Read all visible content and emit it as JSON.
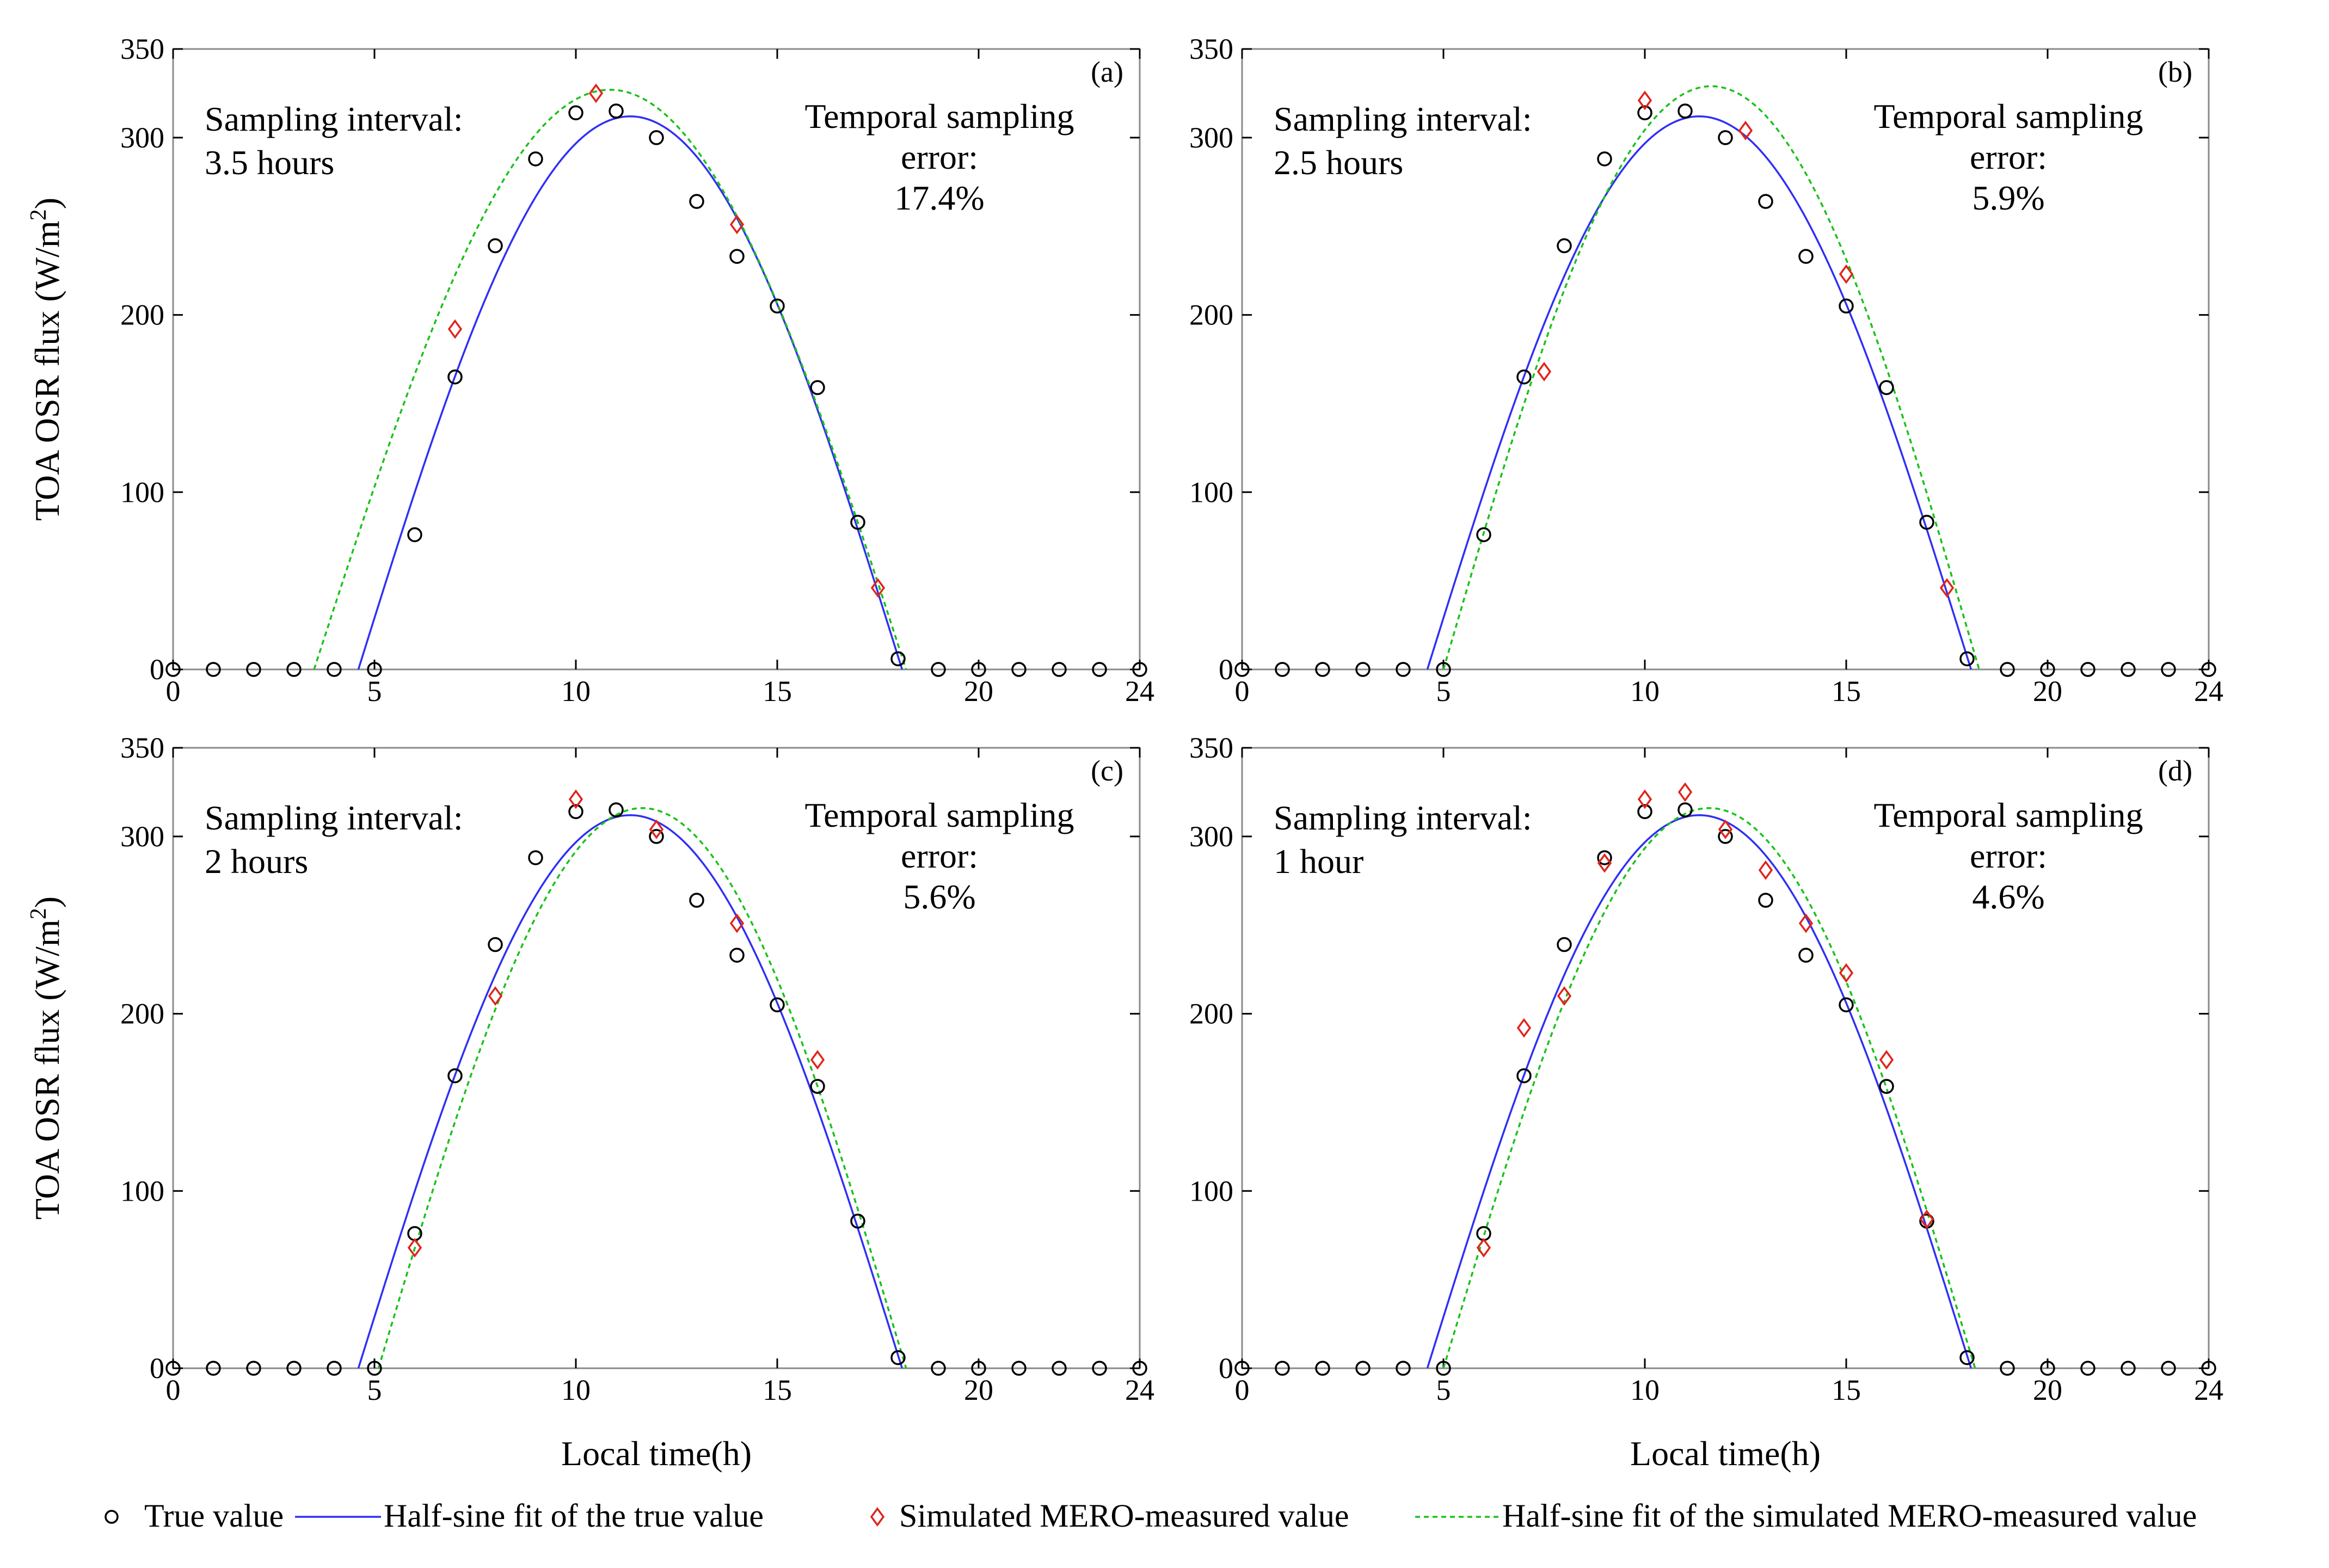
{
  "legend": [
    {
      "label": "True value",
      "kind": "true-marker"
    },
    {
      "label": "Half-sine fit of the true value",
      "kind": "true-fit"
    },
    {
      "label": "Simulated MERO-measured value",
      "kind": "mero-marker"
    },
    {
      "label": "Half-sine fit of the simulated MERO-measured value",
      "kind": "mero-fit"
    }
  ],
  "colors": {
    "true_fit": "#2f2ff5",
    "mero_marker": "#e0241b",
    "mero_fit": "#19c219",
    "true_marker": "#000000"
  },
  "chart_data": [
    {
      "type": "scatter",
      "panel": "(a)",
      "xlabel": "",
      "ylabel": "TOA OSR flux (W/m",
      "ylabel_sup": "2",
      "ylabel_close": ")",
      "xlim": [
        0,
        24
      ],
      "ylim": [
        0,
        350
      ],
      "xticks": [
        "0",
        "5",
        "10",
        "15",
        "20",
        "24"
      ],
      "xtick_values": [
        0,
        5,
        10,
        15,
        20,
        24
      ],
      "yticks": [
        "0",
        "100",
        "200",
        "300",
        "350"
      ],
      "ytick_values": [
        0,
        100,
        200,
        300,
        350
      ],
      "interval_label": "Sampling interval:",
      "interval_value": "3.5 hours",
      "error_label_1": "Temporal sampling",
      "error_label_2": "error:",
      "error_value": "17.4%",
      "true_x": [
        0,
        1,
        2,
        3,
        4,
        5,
        6,
        7,
        8,
        9,
        10,
        11,
        12,
        13,
        14,
        15,
        16,
        17,
        18,
        19,
        20,
        21,
        22,
        23,
        24
      ],
      "true_y": [
        0,
        0,
        0,
        0,
        0,
        0,
        76,
        165,
        239,
        288,
        314,
        315,
        300,
        264,
        233,
        205,
        159,
        83,
        6,
        0,
        0,
        0,
        0,
        0,
        0
      ],
      "mero_x": [
        7,
        10.5,
        14,
        17.5
      ],
      "mero_y": [
        192,
        325,
        251,
        46
      ],
      "fit_true": {
        "start": 4.6,
        "end": 18.1,
        "peak": 312
      },
      "fit_mero": {
        "start": 3.5,
        "end": 18.2,
        "peak": 327
      }
    },
    {
      "type": "scatter",
      "panel": "(b)",
      "xlabel": "",
      "ylabel": "",
      "xlim": [
        0,
        24
      ],
      "ylim": [
        0,
        350
      ],
      "xticks": [
        "0",
        "5",
        "10",
        "15",
        "20",
        "24"
      ],
      "xtick_values": [
        0,
        5,
        10,
        15,
        20,
        24
      ],
      "yticks": [
        "0",
        "100",
        "200",
        "300",
        "350"
      ],
      "ytick_values": [
        0,
        100,
        200,
        300,
        350
      ],
      "interval_label": "Sampling interval:",
      "interval_value": "2.5 hours",
      "error_label_1": "Temporal sampling",
      "error_label_2": "error:",
      "error_value": "5.9%",
      "true_x": [
        0,
        1,
        2,
        3,
        4,
        5,
        6,
        7,
        8,
        9,
        10,
        11,
        12,
        13,
        14,
        15,
        16,
        17,
        18,
        19,
        20,
        21,
        22,
        23,
        24
      ],
      "true_y": [
        0,
        0,
        0,
        0,
        0,
        0,
        76,
        165,
        239,
        288,
        314,
        315,
        300,
        264,
        233,
        205,
        159,
        83,
        6,
        0,
        0,
        0,
        0,
        0,
        0
      ],
      "mero_x": [
        7.5,
        10,
        12.5,
        15,
        17.5
      ],
      "mero_y": [
        168,
        321,
        304,
        223,
        46
      ],
      "fit_true": {
        "start": 4.6,
        "end": 18.1,
        "peak": 312
      },
      "fit_mero": {
        "start": 5.0,
        "end": 18.3,
        "peak": 329
      }
    },
    {
      "type": "scatter",
      "panel": "(c)",
      "xlabel": "Local time(h)",
      "ylabel": "TOA OSR flux (W/m",
      "ylabel_sup": "2",
      "ylabel_close": ")",
      "xlim": [
        0,
        24
      ],
      "ylim": [
        0,
        350
      ],
      "xticks": [
        "0",
        "5",
        "10",
        "15",
        "20",
        "24"
      ],
      "xtick_values": [
        0,
        5,
        10,
        15,
        20,
        24
      ],
      "yticks": [
        "0",
        "100",
        "200",
        "300",
        "350"
      ],
      "ytick_values": [
        0,
        100,
        200,
        300,
        350
      ],
      "interval_label": "Sampling interval:",
      "interval_value": "2 hours",
      "error_label_1": "Temporal sampling",
      "error_label_2": "error:",
      "error_value": "5.6%",
      "true_x": [
        0,
        1,
        2,
        3,
        4,
        5,
        6,
        7,
        8,
        9,
        10,
        11,
        12,
        13,
        14,
        15,
        16,
        17,
        18,
        19,
        20,
        21,
        22,
        23,
        24
      ],
      "true_y": [
        0,
        0,
        0,
        0,
        0,
        0,
        76,
        165,
        239,
        288,
        314,
        315,
        300,
        264,
        233,
        205,
        159,
        83,
        6,
        0,
        0,
        0,
        0,
        0,
        0
      ],
      "mero_x": [
        6,
        8,
        10,
        12,
        14,
        16
      ],
      "mero_y": [
        68,
        210,
        321,
        304,
        251,
        174
      ],
      "fit_true": {
        "start": 4.6,
        "end": 18.1,
        "peak": 312
      },
      "fit_mero": {
        "start": 5.1,
        "end": 18.2,
        "peak": 316
      }
    },
    {
      "type": "scatter",
      "panel": "(d)",
      "xlabel": "Local time(h)",
      "ylabel": "",
      "xlim": [
        0,
        24
      ],
      "ylim": [
        0,
        350
      ],
      "xticks": [
        "0",
        "5",
        "10",
        "15",
        "20",
        "24"
      ],
      "xtick_values": [
        0,
        5,
        10,
        15,
        20,
        24
      ],
      "yticks": [
        "0",
        "100",
        "200",
        "300",
        "350"
      ],
      "ytick_values": [
        0,
        100,
        200,
        300,
        350
      ],
      "interval_label": "Sampling interval:",
      "interval_value": "1 hour",
      "error_label_1": "Temporal sampling",
      "error_label_2": "error:",
      "error_value": "4.6%",
      "true_x": [
        0,
        1,
        2,
        3,
        4,
        5,
        6,
        7,
        8,
        9,
        10,
        11,
        12,
        13,
        14,
        15,
        16,
        17,
        18,
        19,
        20,
        21,
        22,
        23,
        24
      ],
      "true_y": [
        0,
        0,
        0,
        0,
        0,
        0,
        76,
        165,
        239,
        288,
        314,
        315,
        300,
        264,
        233,
        205,
        159,
        83,
        6,
        0,
        0,
        0,
        0,
        0,
        0
      ],
      "mero_x": [
        6,
        7,
        8,
        9,
        10,
        11,
        12,
        13,
        14,
        15,
        16,
        17
      ],
      "mero_y": [
        68,
        192,
        210,
        285,
        321,
        325,
        304,
        281,
        251,
        223,
        174,
        84
      ],
      "fit_true": {
        "start": 4.6,
        "end": 18.1,
        "peak": 312
      },
      "fit_mero": {
        "start": 5.0,
        "end": 18.2,
        "peak": 316
      }
    }
  ]
}
